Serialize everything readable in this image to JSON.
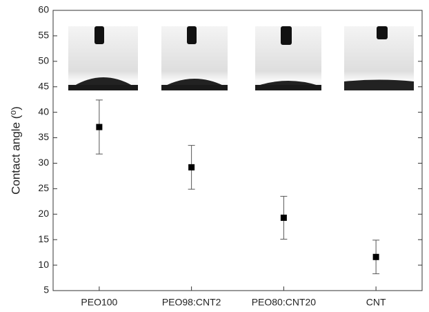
{
  "chart_data": {
    "type": "scatter",
    "ylabel": "Contact angle (⁰)",
    "categories": [
      "PEO100",
      "PEO98:CNT2",
      "PEO80:CNT20",
      "CNT"
    ],
    "values": [
      37.1,
      29.2,
      19.3,
      11.6
    ],
    "errors": [
      5.3,
      4.3,
      4.2,
      3.3
    ],
    "color": "#000000",
    "ylim": [
      5,
      60
    ],
    "yticks": [
      5,
      10,
      15,
      20,
      25,
      30,
      35,
      40,
      45,
      50,
      55,
      60
    ],
    "grid": false
  }
}
